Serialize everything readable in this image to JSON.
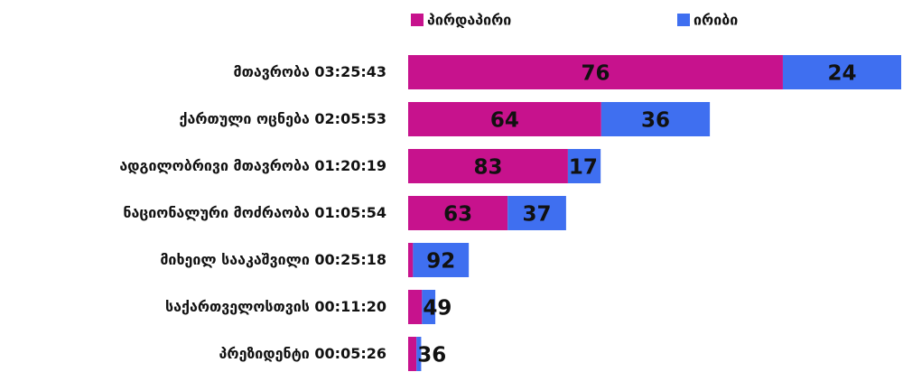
{
  "chart_data": {
    "type": "stacked-hbar",
    "categories": [
      "მთავრობა",
      "ქართული ოცნება",
      "ადგილობრივი მთავრობა",
      "ნაციონალური მოძრაობა",
      "მიხეილ სააკაშვილი",
      "საქართველოსთვის",
      "პრეზიდენტი"
    ],
    "durations": [
      "03:25:43",
      "02:05:53",
      "01:20:19",
      "01:05:54",
      "00:25:18",
      "00:11:20",
      "00:05:26"
    ],
    "series": [
      {
        "name": "პირდაპირი",
        "color": "#c7128d",
        "values": [
          76,
          64,
          83,
          63,
          8,
          51,
          64
        ],
        "value_labels": [
          "76",
          "64",
          "83",
          "63",
          null,
          null,
          null
        ]
      },
      {
        "name": "ირიბი",
        "color": "#3f6ff0",
        "values": [
          24,
          36,
          17,
          37,
          92,
          49,
          36
        ]
      }
    ],
    "legend": "top"
  }
}
